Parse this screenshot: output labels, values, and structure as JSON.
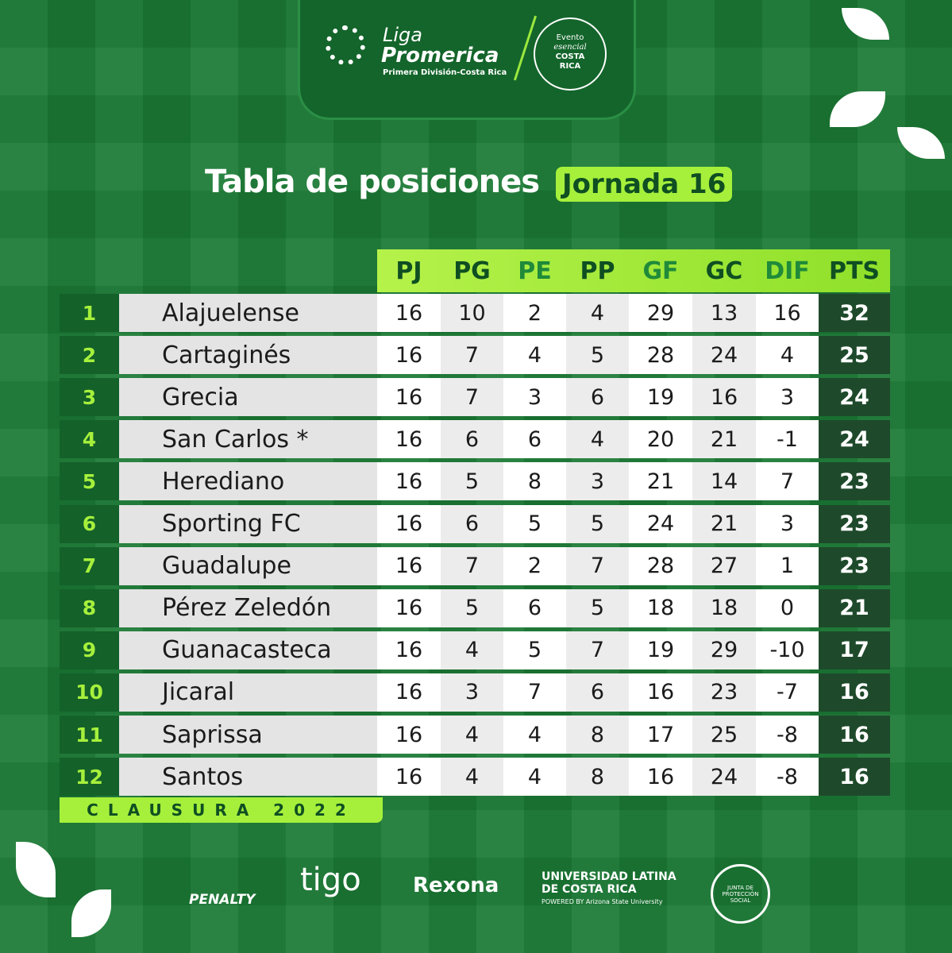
{
  "header": {
    "league_1": "Liga",
    "league_2": "Promerica",
    "league_sub": "Primera División-Costa Rica",
    "event_1": "Evento",
    "event_2": "esencial",
    "event_3": "COSTA",
    "event_4": "RICA"
  },
  "title": "Tabla de posiciones",
  "badge": "Jornada 16",
  "table": {
    "columns": [
      "PJ",
      "PG",
      "PE",
      "PP",
      "GF",
      "GC",
      "DIF",
      "PTS"
    ],
    "rows": [
      {
        "rank": 1,
        "team": "Alajuelense",
        "stats": [
          16,
          10,
          2,
          4,
          29,
          13,
          16,
          32
        ]
      },
      {
        "rank": 2,
        "team": "Cartaginés",
        "stats": [
          16,
          7,
          4,
          5,
          28,
          24,
          4,
          25
        ]
      },
      {
        "rank": 3,
        "team": "Grecia",
        "stats": [
          16,
          7,
          3,
          6,
          19,
          16,
          3,
          24
        ]
      },
      {
        "rank": 4,
        "team": "San Carlos *",
        "stats": [
          16,
          6,
          6,
          4,
          20,
          21,
          -1,
          24
        ]
      },
      {
        "rank": 5,
        "team": "Herediano",
        "stats": [
          16,
          5,
          8,
          3,
          21,
          14,
          7,
          23
        ]
      },
      {
        "rank": 6,
        "team": "Sporting FC",
        "stats": [
          16,
          6,
          5,
          5,
          24,
          21,
          3,
          23
        ]
      },
      {
        "rank": 7,
        "team": "Guadalupe",
        "stats": [
          16,
          7,
          2,
          7,
          28,
          27,
          1,
          23
        ]
      },
      {
        "rank": 8,
        "team": "Pérez Zeledón",
        "stats": [
          16,
          5,
          6,
          5,
          18,
          18,
          0,
          21
        ]
      },
      {
        "rank": 9,
        "team": "Guanacasteca",
        "stats": [
          16,
          4,
          5,
          7,
          19,
          29,
          -10,
          17
        ]
      },
      {
        "rank": 10,
        "team": "Jicaral",
        "stats": [
          16,
          3,
          7,
          6,
          16,
          23,
          -7,
          16
        ]
      },
      {
        "rank": 11,
        "team": "Saprissa",
        "stats": [
          16,
          4,
          4,
          8,
          17,
          25,
          -8,
          16
        ]
      },
      {
        "rank": 12,
        "team": "Santos",
        "stats": [
          16,
          4,
          4,
          8,
          16,
          24,
          -8,
          16
        ]
      }
    ]
  },
  "footer": "CLAUSURA 2022",
  "sponsors": [
    "PENALTY",
    "tigo",
    "Rexona",
    "UNIVERSIDAD LATINA",
    "DE COSTA RICA",
    "POWERED BY Arizona State University",
    "JUNTA DE PROTECCIÓN SOCIAL"
  ]
}
